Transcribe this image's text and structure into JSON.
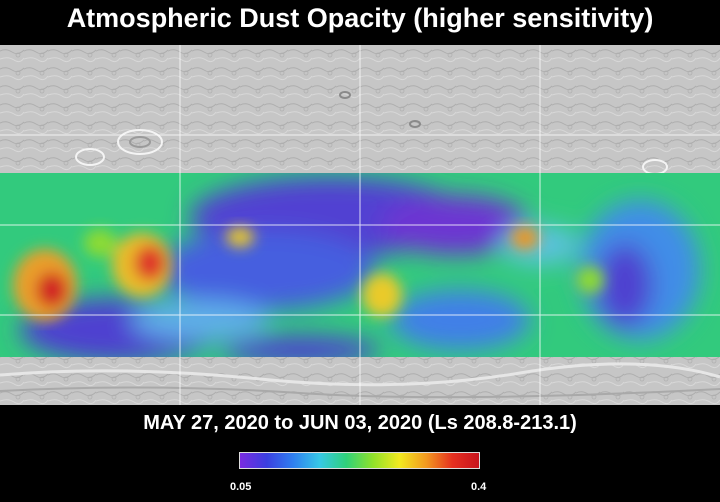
{
  "title": "Atmospheric Dust Opacity (higher sensitivity)",
  "date_range": "MAY 27, 2020 to JUN 03, 2020 (Ls 208.8-213.1)",
  "colorbar": {
    "min_label": "0.05",
    "max_label": "0.4",
    "colors": [
      "#7a2be0",
      "#3b3fe0",
      "#2f7ff0",
      "#37c8e6",
      "#2fd07a",
      "#8fe22a",
      "#f2ea20",
      "#f29a20",
      "#e63020",
      "#c8141e"
    ]
  },
  "map": {
    "background": "#c8c8c8",
    "grid_color": "#ffffff"
  }
}
